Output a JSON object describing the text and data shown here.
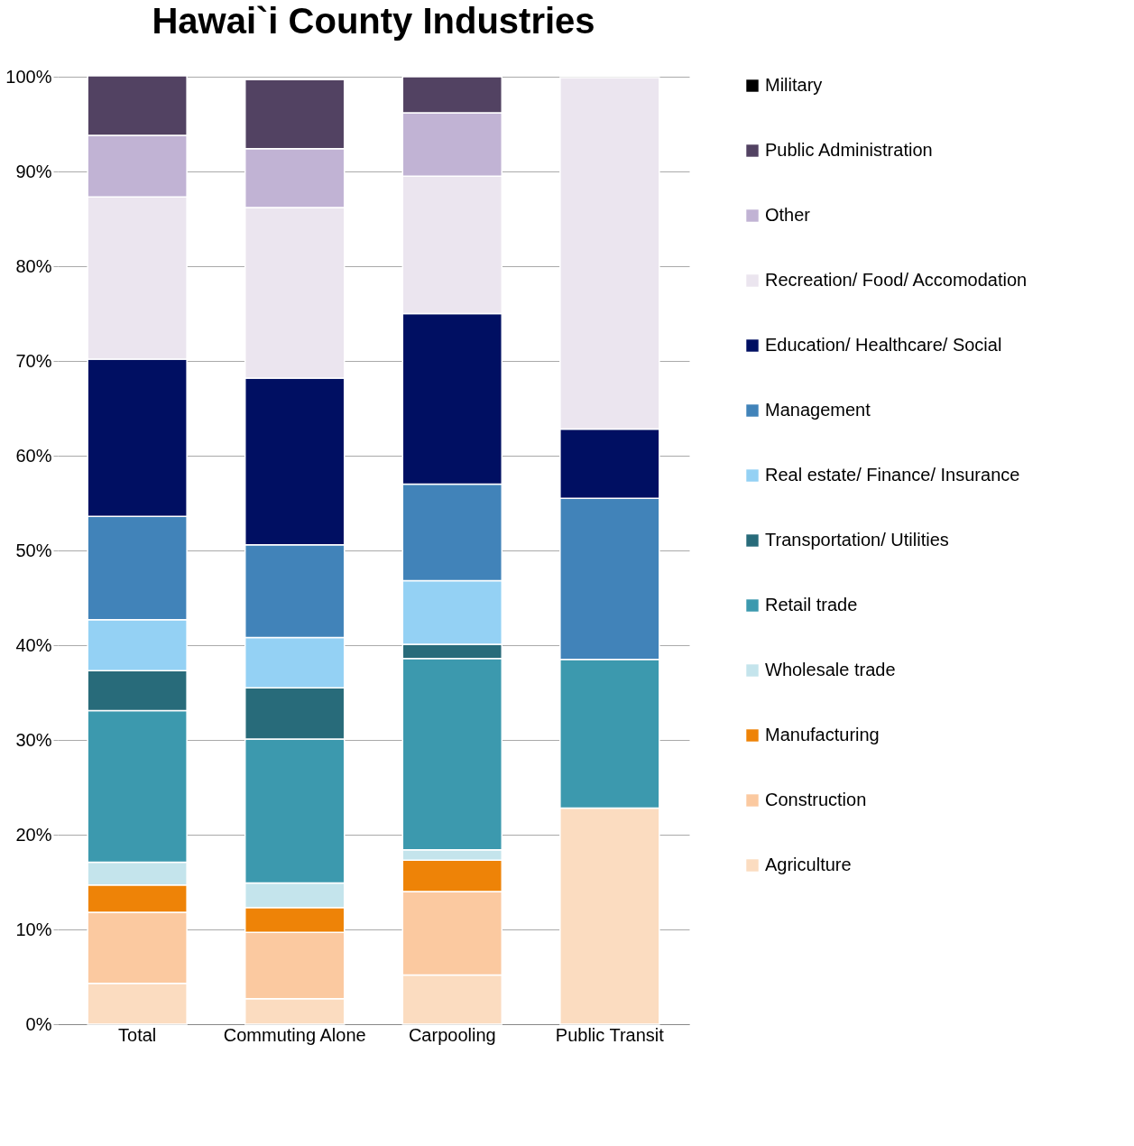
{
  "chart_data": {
    "type": "bar",
    "title": "Hawai`i County Industries",
    "stacked": true,
    "categories": [
      "Total",
      "Commuting Alone",
      "Carpooling",
      "Public Transit"
    ],
    "series": [
      {
        "name": "Agriculture",
        "color": "#fbdcc0",
        "values": [
          4.3,
          2.7,
          5.2,
          22.8
        ]
      },
      {
        "name": "Construction",
        "color": "#fbc9a0",
        "values": [
          7.5,
          7.0,
          8.8,
          0
        ]
      },
      {
        "name": "Manufacturing",
        "color": "#ee8307",
        "values": [
          2.9,
          2.6,
          3.3,
          0
        ]
      },
      {
        "name": "Wholesale trade",
        "color": "#c4e4ec",
        "values": [
          2.4,
          2.6,
          1.1,
          0
        ]
      },
      {
        "name": "Retail trade",
        "color": "#3c99ae",
        "values": [
          16.0,
          15.2,
          20.2,
          15.7
        ]
      },
      {
        "name": "Transportation/ Utilities",
        "color": "#286b7a",
        "values": [
          4.2,
          5.4,
          1.5,
          0
        ]
      },
      {
        "name": "Real estate/ Finance/ Insurance",
        "color": "#94d1f4",
        "values": [
          5.4,
          5.3,
          6.7,
          0
        ]
      },
      {
        "name": "Management",
        "color": "#4183b9",
        "values": [
          10.9,
          9.8,
          10.2,
          17.0
        ]
      },
      {
        "name": "Education/ Healthcare/ Social",
        "color": "#000f62",
        "values": [
          16.6,
          17.6,
          18.0,
          7.3
        ]
      },
      {
        "name": "Recreation/ Food/ Accomodation",
        "color": "#ebe5ef",
        "values": [
          17.1,
          18.0,
          14.5,
          37.1
        ]
      },
      {
        "name": "Other",
        "color": "#c1b3d4",
        "values": [
          6.5,
          6.2,
          6.7,
          0
        ]
      },
      {
        "name": "Public Administration",
        "color": "#524262",
        "values": [
          6.3,
          7.3,
          3.8,
          0
        ]
      },
      {
        "name": "Military",
        "color": "#000000",
        "values": [
          0,
          0,
          0,
          0
        ]
      }
    ],
    "ylim": [
      0,
      100
    ],
    "yticks": [
      {
        "value": 0,
        "label": "0%"
      },
      {
        "value": 10,
        "label": "10%"
      },
      {
        "value": 20,
        "label": "20%"
      },
      {
        "value": 30,
        "label": "30%"
      },
      {
        "value": 40,
        "label": "40%"
      },
      {
        "value": 50,
        "label": "50%"
      },
      {
        "value": 60,
        "label": "60%"
      },
      {
        "value": 70,
        "label": "70%"
      },
      {
        "value": 80,
        "label": "80%"
      },
      {
        "value": 90,
        "label": "90%"
      },
      {
        "value": 100,
        "label": "100%"
      }
    ],
    "grid": "y",
    "legend": "right"
  }
}
